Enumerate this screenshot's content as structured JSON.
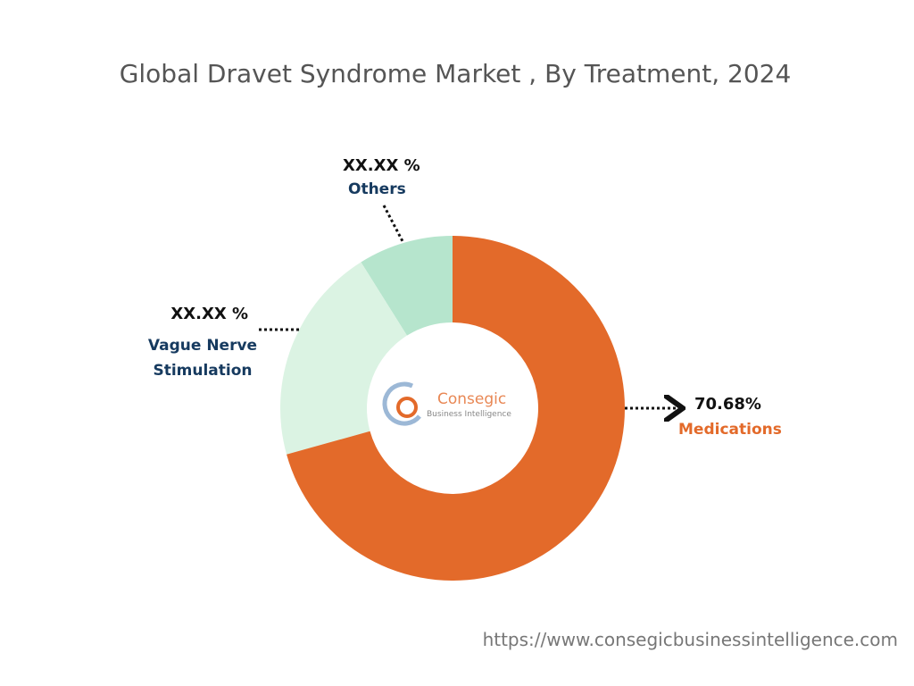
{
  "chart_data": {
    "type": "donut",
    "title": "Global Dravet Syndrome Market , By Treatment, 2024",
    "categories": [
      "Medications",
      "Vague Nerve Stimulation",
      "Others"
    ],
    "values": [
      70.68,
      20.4,
      8.92
    ],
    "value_labels": [
      "70.68%",
      "XX.XX %",
      "XX.XX %"
    ],
    "colors": [
      "#e36a2a",
      "#dbf3e3",
      "#b6e5cd"
    ],
    "label_colors": [
      "#e36a2a",
      "#163a5f",
      "#163a5f"
    ]
  },
  "watermark": {
    "name": "Consegic",
    "tagline": "Business Intelligence"
  },
  "source": "https://www.consegicbusinessintelligence.com"
}
